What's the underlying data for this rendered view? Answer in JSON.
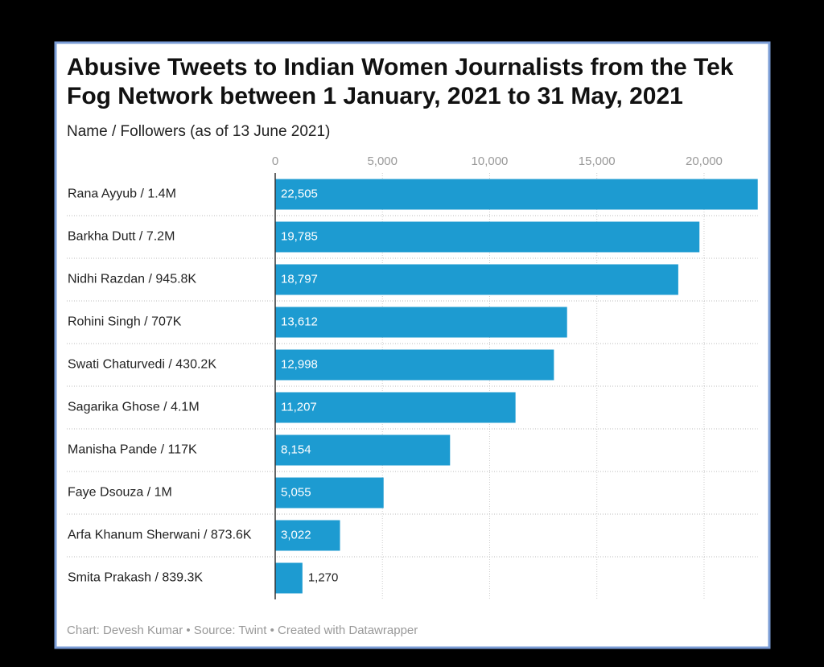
{
  "chart_data": {
    "type": "bar",
    "orientation": "horizontal",
    "title": [
      "Abusive Tweets to Indian Women Journalists from the Tek",
      "Fog Network between 1 January, 2021 to 31 May, 2021"
    ],
    "subtitle": "Name / Followers (as of 13 June 2021)",
    "categories": [
      "Rana Ayyub / 1.4M",
      "Barkha Dutt / 7.2M",
      "Nidhi Razdan / 945.8K",
      "Rohini Singh / 707K",
      "Swati Chaturvedi / 430.2K",
      "Sagarika Ghose / 4.1M",
      "Manisha Pande / 117K",
      "Faye Dsouza / 1M",
      "Arfa Khanum Sherwani / 873.6K",
      "Smita Prakash / 839.3K"
    ],
    "values": [
      22505,
      19785,
      18797,
      13612,
      12998,
      11207,
      8154,
      5055,
      3022,
      1270
    ],
    "value_labels": [
      "22,505",
      "19,785",
      "18,797",
      "13,612",
      "12,998",
      "11,207",
      "8,154",
      "5,055",
      "3,022",
      "1,270"
    ],
    "color": "#1d9bd1",
    "xlim": [
      0,
      22505
    ],
    "xticks": [
      0,
      {
        "value": 5000,
        "label": "5,000"
      },
      {
        "value": 10000,
        "label": "10,000"
      },
      {
        "value": 15000,
        "label": "15,000"
      },
      {
        "value": 20000,
        "label": "20,000"
      }
    ],
    "grid": true,
    "footer": "Chart: Devesh Kumar • Source: Twint • Created with Datawrapper"
  }
}
